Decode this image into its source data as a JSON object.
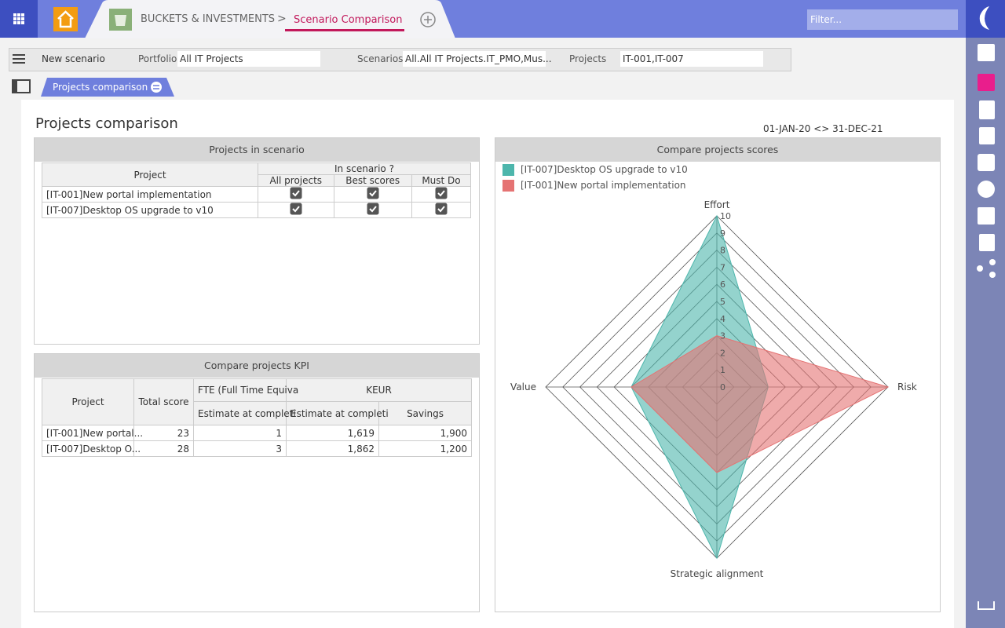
{
  "topbar": {
    "breadcrumb": [
      "BUCKETS & INVESTMENTS",
      "Scenario Comparison"
    ],
    "filter_placeholder": "Filter..."
  },
  "toolbar": {
    "new_scenario": "New scenario",
    "portfolio_label": "Portfolio",
    "portfolio_value": "All IT Projects",
    "scenarios_label": "Scenarios",
    "scenarios_value": "All.All IT Projects.IT_PMO,Mus...",
    "projects_label": "Projects",
    "projects_value": "IT-001,IT-007"
  },
  "tab": "Projects comparison",
  "page_title": "Projects comparison",
  "date_range": "01-JAN-20 <> 31-DEC-21",
  "scenario_table": {
    "title": "Projects in scenario",
    "header_project": "Project",
    "header_group": "In scenario ?",
    "columns": [
      "All projects",
      "Best scores",
      "Must Do"
    ],
    "rows": [
      {
        "project": "[IT-001]New portal implementation",
        "checks": [
          true,
          true,
          true
        ]
      },
      {
        "project": "[IT-007]Desktop OS upgrade to v10",
        "checks": [
          true,
          true,
          true
        ]
      }
    ]
  },
  "kpi_table": {
    "title": "Compare projects KPI",
    "headers": {
      "project": "Project",
      "total": "Total score",
      "fte": "FTE (Full Time Equiva",
      "keur": "KEUR",
      "fte_estimate": "Estimate at completi",
      "keur_estimate": "Estimate at completi",
      "savings": "Savings"
    },
    "rows": [
      [
        "[IT-001]New portal...",
        "23",
        "1",
        "1,619",
        "1,900"
      ],
      [
        "[IT-007]Desktop O...",
        "28",
        "3",
        "1,862",
        "1,200"
      ]
    ]
  },
  "chart_data": {
    "type": "radar",
    "title": "Compare projects scores",
    "axes": [
      "Effort",
      "Risk",
      "Strategic alignment",
      "Value"
    ],
    "rlim": [
      0,
      10
    ],
    "rticks": [
      0,
      1,
      2,
      3,
      4,
      5,
      6,
      7,
      8,
      9,
      10
    ],
    "series": [
      {
        "name": "[IT-007]Desktop OS upgrade to v10",
        "color": "#4db6ac",
        "values": [
          10,
          3,
          10,
          5
        ]
      },
      {
        "name": "[IT-001]New portal implementation",
        "color": "#e57373",
        "values": [
          3,
          10,
          5,
          5
        ]
      }
    ]
  }
}
